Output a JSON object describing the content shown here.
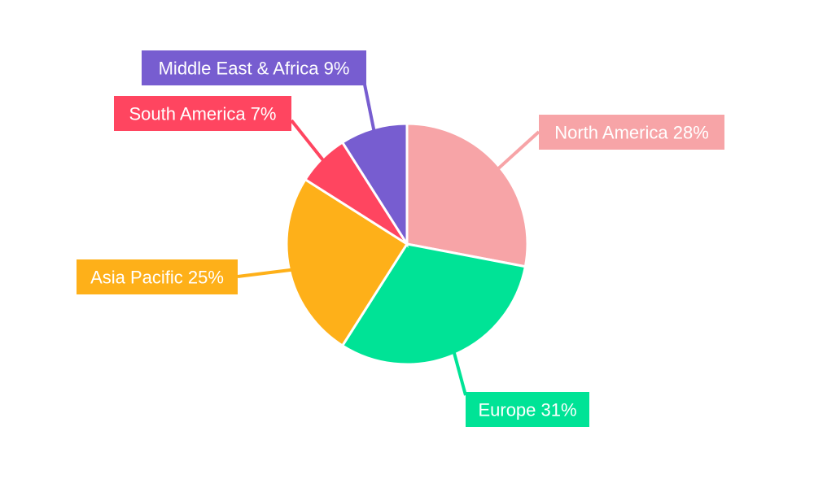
{
  "chart_data": {
    "type": "pie",
    "title": "",
    "categories": [
      "North America",
      "Europe",
      "Asia Pacific",
      "South America",
      "Middle East & Africa"
    ],
    "values": [
      28,
      31,
      25,
      7,
      9
    ],
    "unit": "%",
    "colors": [
      "#f7a4a7",
      "#00e396",
      "#feb019",
      "#ff4560",
      "#775dd0"
    ],
    "labels": [
      "North America 28%",
      "Europe 31%",
      "Asia Pacific 25%",
      "South America 7%",
      "Middle East & Africa 9%"
    ],
    "start_angle_deg": 0,
    "direction": "clockwise",
    "legend": "none",
    "label_style": "callout boxes with leader lines"
  }
}
